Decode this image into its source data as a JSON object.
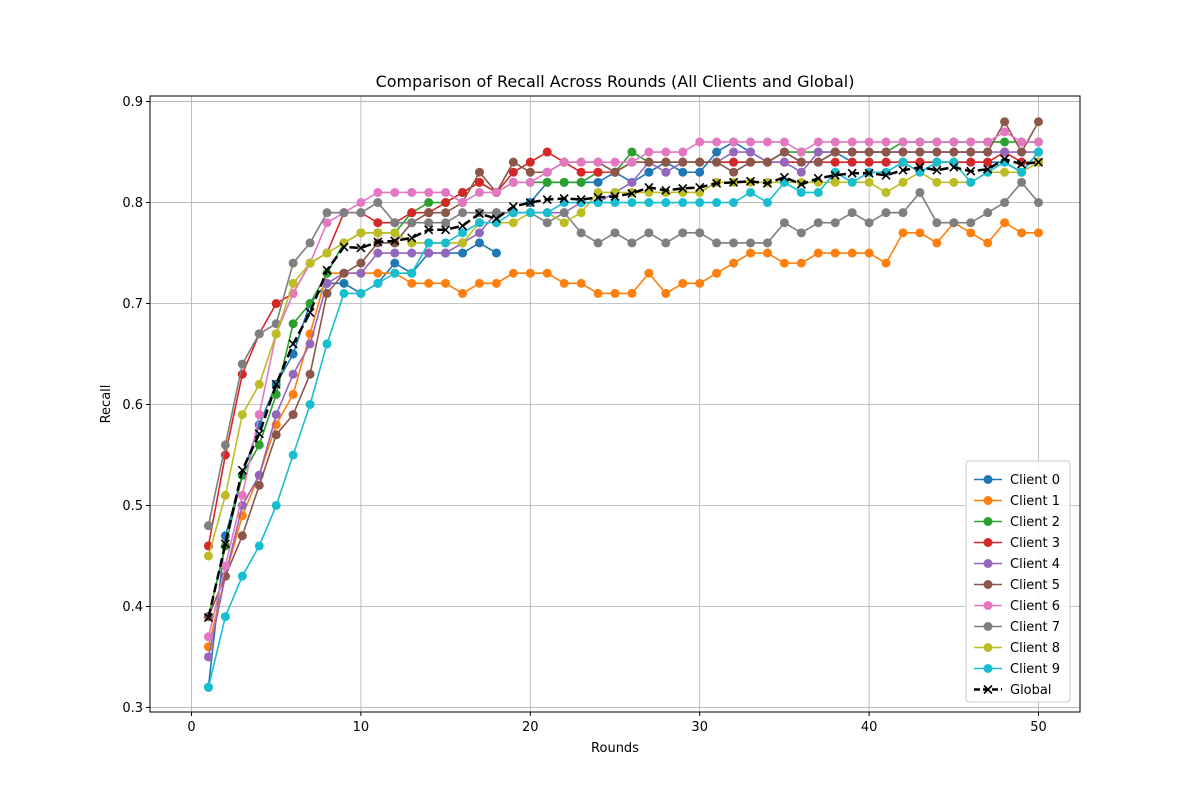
{
  "chart_data": {
    "type": "line",
    "title": "Comparison of Recall Across Rounds (All Clients and Global)",
    "xlabel": "Rounds",
    "ylabel": "Recall",
    "xlim": [
      -2.45,
      52.45
    ],
    "ylim": [
      0.2955,
      0.9055
    ],
    "xticks": [
      0,
      10,
      20,
      30,
      40,
      50
    ],
    "yticks": [
      0.3,
      0.4,
      0.5,
      0.6,
      0.7,
      0.8,
      0.9
    ],
    "grid": true,
    "legend_position": "lower right",
    "x": [
      1,
      2,
      3,
      4,
      5,
      6,
      7,
      8,
      9,
      10,
      11,
      12,
      13,
      14,
      15,
      16,
      17,
      18,
      19,
      20,
      21,
      22,
      23,
      24,
      25,
      26,
      27,
      28,
      29,
      30,
      31,
      32,
      33,
      34,
      35,
      36,
      37,
      38,
      39,
      40,
      41,
      42,
      43,
      44,
      45,
      46,
      47,
      48,
      49,
      50
    ],
    "series": [
      {
        "name": "Client 0",
        "color": "#1f77b4",
        "marker": "circle",
        "style": "solid",
        "values": [
          0.32,
          0.47,
          0.53,
          0.58,
          0.62,
          0.65,
          0.7,
          0.72,
          0.72,
          0.71,
          0.72,
          0.74,
          0.73,
          0.75,
          0.75,
          0.75,
          0.76,
          0.75,
          null,
          0.8,
          0.82,
          0.82,
          0.82,
          0.82,
          0.83,
          0.82,
          0.83,
          0.84,
          0.83,
          0.83,
          0.85,
          0.86,
          0.85,
          0.84,
          0.85,
          0.84,
          0.84,
          0.85,
          0.84,
          0.84,
          0.84,
          0.84,
          0.84,
          0.84,
          0.84,
          0.84,
          0.84,
          0.84,
          0.83,
          0.85
        ]
      },
      {
        "name": "Client 1",
        "color": "#ff7f0e",
        "marker": "circle",
        "style": "solid",
        "values": [
          0.36,
          0.43,
          0.49,
          0.53,
          0.58,
          0.61,
          0.67,
          0.73,
          0.73,
          0.73,
          0.73,
          0.73,
          0.72,
          0.72,
          0.72,
          0.71,
          0.72,
          0.72,
          0.73,
          0.73,
          0.73,
          0.72,
          0.72,
          0.71,
          0.71,
          0.71,
          0.73,
          0.71,
          0.72,
          0.72,
          0.73,
          0.74,
          0.75,
          0.75,
          0.74,
          0.74,
          0.75,
          0.75,
          0.75,
          0.75,
          0.74,
          0.77,
          0.77,
          0.76,
          0.78,
          0.77,
          0.76,
          0.78,
          0.77,
          0.77
        ]
      },
      {
        "name": "Client 2",
        "color": "#2ca02c",
        "marker": "circle",
        "style": "solid",
        "values": [
          0.39,
          0.46,
          0.53,
          0.56,
          0.61,
          0.68,
          0.7,
          0.73,
          0.76,
          0.77,
          0.77,
          0.77,
          0.79,
          0.8,
          0.8,
          0.81,
          0.82,
          0.81,
          0.82,
          0.82,
          0.82,
          0.82,
          0.82,
          0.83,
          0.83,
          0.85,
          0.84,
          0.84,
          0.84,
          0.84,
          0.84,
          0.84,
          0.84,
          0.84,
          0.85,
          0.85,
          0.85,
          0.85,
          0.85,
          0.85,
          0.85,
          0.86,
          0.86,
          0.86,
          0.86,
          0.86,
          0.86,
          0.86,
          0.86,
          0.86
        ]
      },
      {
        "name": "Client 3",
        "color": "#d62728",
        "marker": "circle",
        "style": "solid",
        "values": [
          0.46,
          0.55,
          0.63,
          0.67,
          0.7,
          0.71,
          0.74,
          0.75,
          0.79,
          0.79,
          0.78,
          0.78,
          0.79,
          0.79,
          0.8,
          0.81,
          0.82,
          0.81,
          0.83,
          0.84,
          0.85,
          0.84,
          0.83,
          0.83,
          0.83,
          0.84,
          0.84,
          0.84,
          0.84,
          0.84,
          0.84,
          0.84,
          0.84,
          0.84,
          0.84,
          0.84,
          0.84,
          0.84,
          0.84,
          0.84,
          0.84,
          0.84,
          0.84,
          0.84,
          0.84,
          0.84,
          0.84,
          0.85,
          0.84,
          0.84
        ]
      },
      {
        "name": "Client 4",
        "color": "#9467bd",
        "marker": "circle",
        "style": "solid",
        "values": [
          0.35,
          0.43,
          0.5,
          0.53,
          0.59,
          0.63,
          0.66,
          0.72,
          0.73,
          0.73,
          0.75,
          0.75,
          0.75,
          0.75,
          0.75,
          0.76,
          0.77,
          0.79,
          0.79,
          0.79,
          0.79,
          0.79,
          0.8,
          0.8,
          0.81,
          0.82,
          0.84,
          0.83,
          0.84,
          0.84,
          0.84,
          0.85,
          0.85,
          0.84,
          0.84,
          0.83,
          0.85,
          0.85,
          0.85,
          0.85,
          0.85,
          0.85,
          0.85,
          0.85,
          0.85,
          0.85,
          0.85,
          0.85,
          0.85,
          0.85
        ]
      },
      {
        "name": "Client 5",
        "color": "#8c564b",
        "marker": "circle",
        "style": "solid",
        "values": [
          0.39,
          0.43,
          0.47,
          0.52,
          0.57,
          0.59,
          0.63,
          0.71,
          0.73,
          0.74,
          0.76,
          0.76,
          0.78,
          0.79,
          0.79,
          0.8,
          0.83,
          0.81,
          0.84,
          0.83,
          0.83,
          0.84,
          0.84,
          0.84,
          0.83,
          0.84,
          0.84,
          0.84,
          0.84,
          0.84,
          0.84,
          0.83,
          0.84,
          0.84,
          0.85,
          0.84,
          0.84,
          0.85,
          0.85,
          0.85,
          0.85,
          0.85,
          0.85,
          0.85,
          0.85,
          0.85,
          0.85,
          0.88,
          0.85,
          0.88
        ]
      },
      {
        "name": "Client 6",
        "color": "#e377c2",
        "marker": "circle",
        "style": "solid",
        "values": [
          0.37,
          0.44,
          0.51,
          0.59,
          0.67,
          0.71,
          0.74,
          0.78,
          0.79,
          0.8,
          0.81,
          0.81,
          0.81,
          0.81,
          0.81,
          0.8,
          0.81,
          0.81,
          0.82,
          0.82,
          0.83,
          0.84,
          0.84,
          0.84,
          0.84,
          0.84,
          0.85,
          0.85,
          0.85,
          0.86,
          0.86,
          0.86,
          0.86,
          0.86,
          0.86,
          0.85,
          0.86,
          0.86,
          0.86,
          0.86,
          0.86,
          0.86,
          0.86,
          0.86,
          0.86,
          0.86,
          0.86,
          0.87,
          0.86,
          0.86
        ]
      },
      {
        "name": "Client 7",
        "color": "#7f7f7f",
        "marker": "circle",
        "style": "solid",
        "values": [
          0.48,
          0.56,
          0.64,
          0.67,
          0.68,
          0.74,
          0.76,
          0.79,
          0.79,
          0.79,
          0.8,
          0.78,
          0.78,
          0.78,
          0.78,
          0.79,
          0.79,
          0.79,
          0.79,
          0.79,
          0.78,
          0.79,
          0.77,
          0.76,
          0.77,
          0.76,
          0.77,
          0.76,
          0.77,
          0.77,
          0.76,
          0.76,
          0.76,
          0.76,
          0.78,
          0.77,
          0.78,
          0.78,
          0.79,
          0.78,
          0.79,
          0.79,
          0.81,
          0.78,
          0.78,
          0.78,
          0.79,
          0.8,
          0.82,
          0.8
        ]
      },
      {
        "name": "Client 8",
        "color": "#bcbd22",
        "marker": "circle",
        "style": "solid",
        "values": [
          0.45,
          0.51,
          0.59,
          0.62,
          0.67,
          0.72,
          0.74,
          0.75,
          0.76,
          0.77,
          0.77,
          0.77,
          0.76,
          0.76,
          0.76,
          0.76,
          0.78,
          0.78,
          0.78,
          0.79,
          0.79,
          0.78,
          0.79,
          0.81,
          0.81,
          0.81,
          0.81,
          0.81,
          0.81,
          0.81,
          0.82,
          0.82,
          0.82,
          0.82,
          0.82,
          0.82,
          0.82,
          0.82,
          0.82,
          0.82,
          0.81,
          0.82,
          0.83,
          0.82,
          0.82,
          0.82,
          0.83,
          0.83,
          0.83,
          0.84
        ]
      },
      {
        "name": "Client 9",
        "color": "#17becf",
        "marker": "circle",
        "style": "solid",
        "values": [
          0.32,
          0.39,
          0.43,
          0.46,
          0.5,
          0.55,
          0.6,
          0.66,
          0.71,
          0.71,
          0.72,
          0.73,
          0.73,
          0.76,
          0.76,
          0.77,
          0.78,
          0.78,
          0.79,
          0.79,
          0.79,
          0.8,
          0.8,
          0.8,
          0.8,
          0.8,
          0.8,
          0.8,
          0.8,
          0.8,
          0.8,
          0.8,
          0.81,
          0.8,
          0.82,
          0.81,
          0.81,
          0.83,
          0.82,
          0.83,
          0.83,
          0.84,
          0.83,
          0.84,
          0.84,
          0.82,
          0.83,
          0.84,
          0.83,
          0.85
        ]
      },
      {
        "name": "Global",
        "color": "#000000",
        "marker": "x",
        "style": "dashed",
        "values": [
          0.389,
          0.462,
          0.535,
          0.571,
          0.62,
          0.66,
          0.691,
          0.733,
          0.756,
          0.755,
          0.761,
          0.762,
          0.765,
          0.773,
          0.773,
          0.777,
          0.789,
          0.784,
          0.796,
          0.8,
          0.803,
          0.804,
          0.803,
          0.805,
          0.806,
          0.809,
          0.815,
          0.812,
          0.814,
          0.815,
          0.819,
          0.82,
          0.821,
          0.819,
          0.825,
          0.818,
          0.824,
          0.827,
          0.829,
          0.829,
          0.827,
          0.832,
          0.835,
          0.832,
          0.835,
          0.831,
          0.833,
          0.843,
          0.838,
          0.84
        ]
      }
    ]
  }
}
